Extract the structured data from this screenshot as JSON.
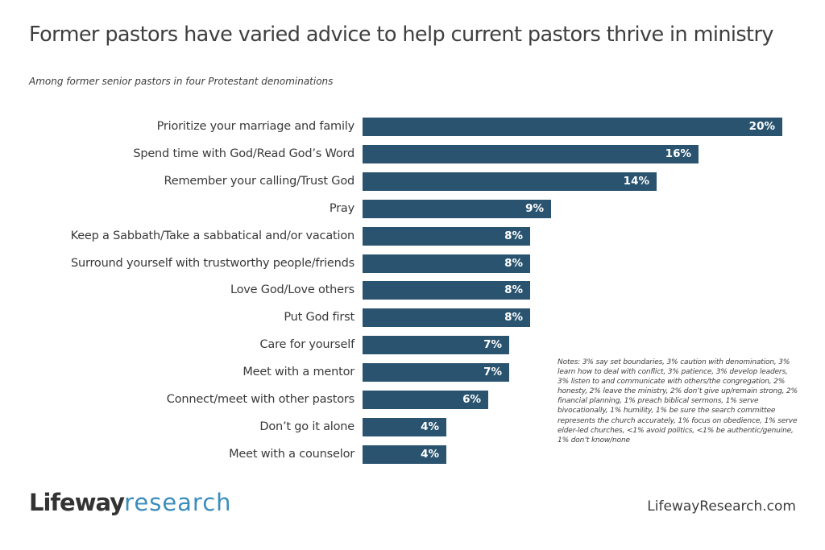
{
  "header": {
    "title": "Former pastors have varied advice to help current pastors thrive in ministry",
    "subtitle": "Among former senior pastors in four Protestant denominations"
  },
  "colors": {
    "bar": "#29536f",
    "bar_label": "#ffffff",
    "text": "#3d3d3d",
    "brand_dark": "#333333",
    "brand_blue": "#3a8dbd"
  },
  "chart_data": {
    "type": "bar",
    "orientation": "horizontal",
    "title": "Former pastors have varied advice to help current pastors thrive in ministry",
    "subtitle": "Among former senior pastors in four Protestant denominations",
    "xlabel": "",
    "ylabel": "",
    "unit": "%",
    "xlim": [
      0,
      20
    ],
    "grid": false,
    "legend": null,
    "categories": [
      "Prioritize your marriage and family",
      "Spend time with God/Read God’s Word",
      "Remember your calling/Trust God",
      "Pray",
      "Keep a Sabbath/Take a sabbatical and/or vacation",
      "Surround yourself with trustworthy people/friends",
      "Love God/Love others",
      "Put God first",
      "Care for yourself",
      "Meet with a mentor",
      "Connect/meet with other pastors",
      "Don’t go it alone",
      "Meet with a counselor"
    ],
    "values": [
      20,
      16,
      14,
      9,
      8,
      8,
      8,
      8,
      7,
      7,
      6,
      4,
      4
    ],
    "value_labels": [
      "20%",
      "16%",
      "14%",
      "9%",
      "8%",
      "8%",
      "8%",
      "8%",
      "7%",
      "7%",
      "6%",
      "4%",
      "4%"
    ],
    "annotations": [
      "Notes: 3% say set boundaries, 3% caution with denomination, 3% learn how to deal with conflict, 3% patience, 3% develop leaders, 3% listen to and communicate with others/the congregation, 2% honesty, 2% leave the ministry, 2% don’t give up/remain strong, 2% financial planning, 1% preach biblical sermons, 1% serve bivocationally, 1% humility, 1% be sure the search committee represents the church accurately, 1% focus on obedience, 1% serve elder-led churches, <1% avoid politics, <1% be authentic/genuine, 1% don’t know/none"
    ]
  },
  "notes": "Notes: 3% say set boundaries, 3% caution with denomination, 3% learn how to deal with conflict, 3% patience, 3% develop leaders, 3% listen to and communicate with others/the congregation, 2% honesty, 2% leave the ministry, 2% don’t give up/remain strong, 2% financial planning, 1% preach biblical sermons, 1% serve bivocationally, 1% humility, 1% be sure the search committee represents the church accurately, 1% focus on obedience, 1% serve elder-led churches, <1% avoid politics, <1% be authentic/genuine, 1% don’t know/none",
  "footer": {
    "logo_strong": "Lifeway",
    "logo_light": "research",
    "website": "LifewayResearch.com"
  }
}
